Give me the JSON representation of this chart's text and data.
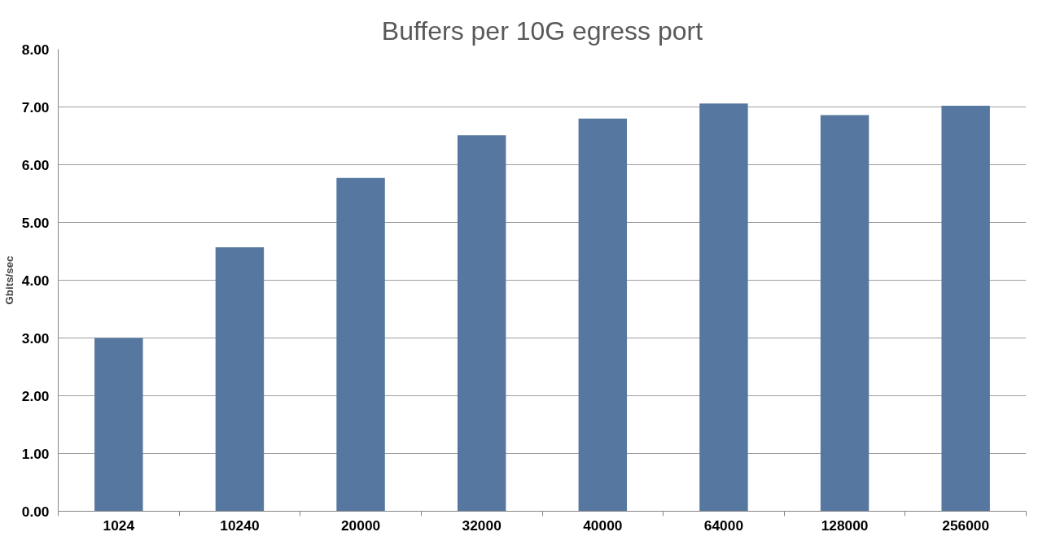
{
  "chart_data": {
    "type": "bar",
    "title": "Buffers per 10G egress port",
    "ylabel": "Gbits/sec",
    "categories": [
      "1024",
      "10240",
      "20000",
      "32000",
      "40000",
      "64000",
      "128000",
      "256000"
    ],
    "values": [
      3.0,
      4.57,
      5.77,
      6.51,
      6.8,
      7.06,
      6.86,
      7.02
    ],
    "color": "#56779f",
    "ylim": [
      0,
      8
    ],
    "yticks": [
      {
        "value": 0,
        "label": "0.00"
      },
      {
        "value": 1,
        "label": "1.00"
      },
      {
        "value": 2,
        "label": "2.00"
      },
      {
        "value": 3,
        "label": "3.00"
      },
      {
        "value": 4,
        "label": "4.00"
      },
      {
        "value": 5,
        "label": "5.00"
      },
      {
        "value": 6,
        "label": "6.00"
      },
      {
        "value": 7,
        "label": "7.00"
      },
      {
        "value": 8,
        "label": "8.00"
      }
    ],
    "grid": "y"
  }
}
